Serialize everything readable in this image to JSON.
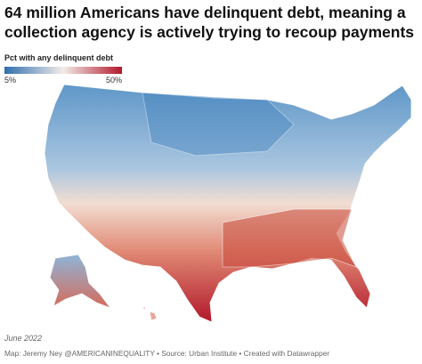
{
  "header": {
    "title_lines": [
      "64 million Americans have delinquent debt, meaning a",
      "collection agency is actively trying to recoup payments"
    ]
  },
  "legend": {
    "title": "Pct with any delinquent debt",
    "labels": [
      "5%",
      "50%"
    ]
  },
  "footer": {
    "date": "June 2022",
    "credit": "Map: Jeremy Ney @AMERICANINEQUALITY • Source: Urban Institute • Created with Datawrapper"
  }
}
